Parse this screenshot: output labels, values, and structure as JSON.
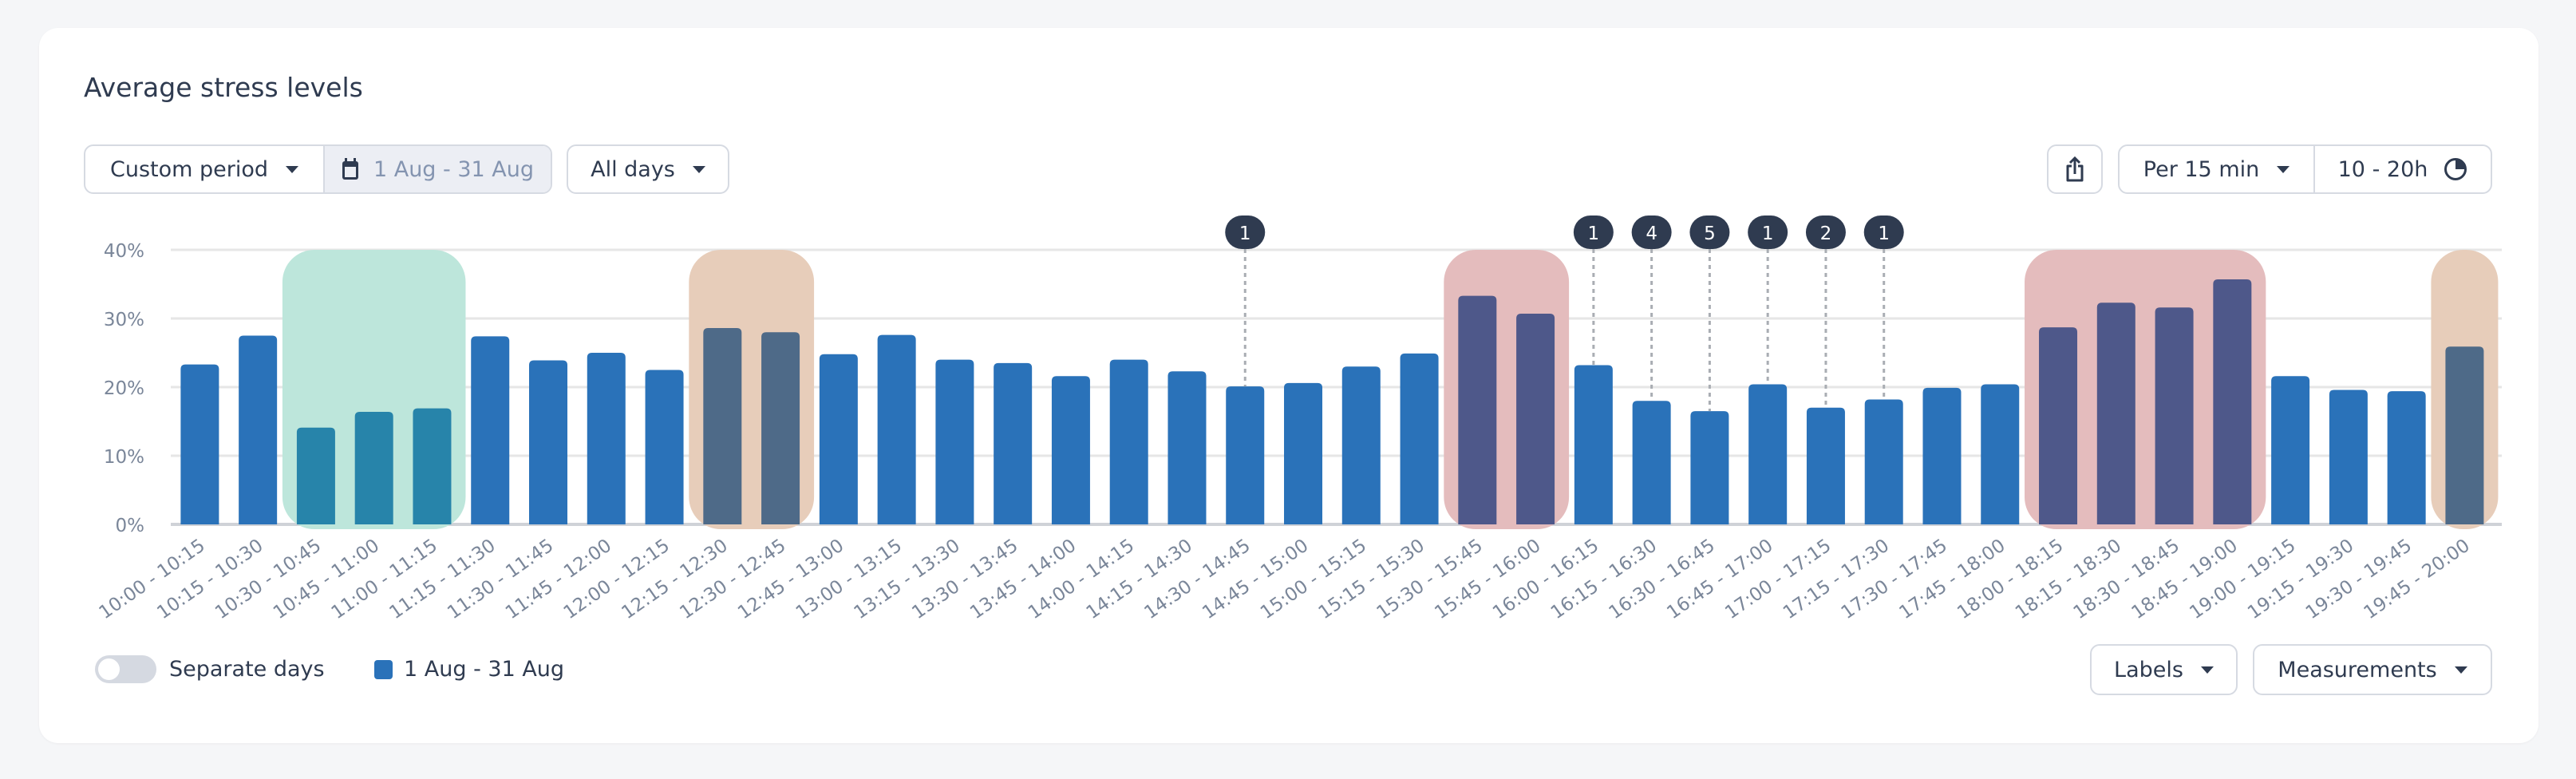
{
  "title": "Average stress levels",
  "controls": {
    "period_label": "Custom period",
    "date_range": "1 Aug - 31 Aug",
    "days_label": "All days",
    "interval_label": "Per 15 min",
    "hours_label": "10 - 20h",
    "share_icon": "share-icon",
    "calendar_icon": "calendar-icon",
    "clock_icon": "pie-clock-icon"
  },
  "footer": {
    "toggle_label": "Separate days",
    "toggle_on": false,
    "legend_label": "1 Aug - 31 Aug",
    "labels_button": "Labels",
    "measurements_button": "Measurements"
  },
  "colors": {
    "bar": "#2a72b9",
    "green": "#bde6db",
    "tan": "#e7cdba",
    "red": "#e4bcbd",
    "marker": "#2f3b50"
  },
  "chart_data": {
    "type": "bar",
    "ylim": [
      0,
      40
    ],
    "yticks": [
      "0%",
      "10%",
      "20%",
      "30%",
      "40%"
    ],
    "categories": [
      "10:00 - 10:15",
      "10:15 - 10:30",
      "10:30 - 10:45",
      "10:45 - 11:00",
      "11:00 - 11:15",
      "11:15 - 11:30",
      "11:30 - 11:45",
      "11:45 - 12:00",
      "12:00 - 12:15",
      "12:15 - 12:30",
      "12:30 - 12:45",
      "12:45 - 13:00",
      "13:00 - 13:15",
      "13:15 - 13:30",
      "13:30 - 13:45",
      "13:45 - 14:00",
      "14:00 - 14:15",
      "14:15 - 14:30",
      "14:30 - 14:45",
      "14:45 - 15:00",
      "15:00 - 15:15",
      "15:15 - 15:30",
      "15:30 - 15:45",
      "15:45 - 16:00",
      "16:00 - 16:15",
      "16:15 - 16:30",
      "16:30 - 16:45",
      "16:45 - 17:00",
      "17:00 - 17:15",
      "17:15 - 17:30",
      "17:30 - 17:45",
      "17:45 - 18:00",
      "18:00 - 18:15",
      "18:15 - 18:30",
      "18:30 - 18:45",
      "18:45 - 19:00",
      "19:00 - 19:15",
      "19:15 - 19:30",
      "19:30 - 19:45",
      "19:45 - 20:00"
    ],
    "values": [
      23.3,
      27.5,
      14.1,
      16.4,
      16.9,
      27.4,
      23.9,
      25.0,
      22.5,
      28.6,
      28.0,
      24.8,
      27.6,
      24.0,
      23.5,
      21.6,
      24.0,
      22.3,
      20.1,
      20.6,
      23.0,
      24.9,
      33.3,
      30.7,
      23.2,
      18.0,
      16.5,
      20.4,
      17.0,
      18.2,
      19.9,
      20.4,
      28.7,
      32.3,
      31.6,
      35.7,
      21.6,
      19.6,
      19.4,
      25.9
    ],
    "highlights": [
      {
        "from": "10:30 - 10:45",
        "to": "11:00 - 11:15",
        "color": "#bde6db",
        "bar_color": "#2784aa"
      },
      {
        "from": "12:15 - 12:30",
        "to": "12:30 - 12:45",
        "color": "#e7cdba",
        "bar_color": "#4e6a88"
      },
      {
        "from": "15:30 - 15:45",
        "to": "15:45 - 16:00",
        "color": "#e4bcbd",
        "bar_color": "#4e588a"
      },
      {
        "from": "18:00 - 18:15",
        "to": "18:45 - 19:00",
        "color": "#e4bcbd",
        "bar_color": "#4e588a"
      },
      {
        "from": "19:45 - 20:00",
        "to": "19:45 - 20:00",
        "color": "#e7cdba",
        "bar_color": "#4e6a88"
      }
    ],
    "markers": [
      {
        "category": "14:30 - 14:45",
        "count": "1"
      },
      {
        "category": "16:00 - 16:15",
        "count": "1"
      },
      {
        "category": "16:15 - 16:30",
        "count": "4"
      },
      {
        "category": "16:30 - 16:45",
        "count": "5"
      },
      {
        "category": "16:45 - 17:00",
        "count": "1"
      },
      {
        "category": "17:00 - 17:15",
        "count": "2"
      },
      {
        "category": "17:15 - 17:30",
        "count": "1"
      }
    ],
    "grid": true,
    "legend": "bottom-left"
  }
}
